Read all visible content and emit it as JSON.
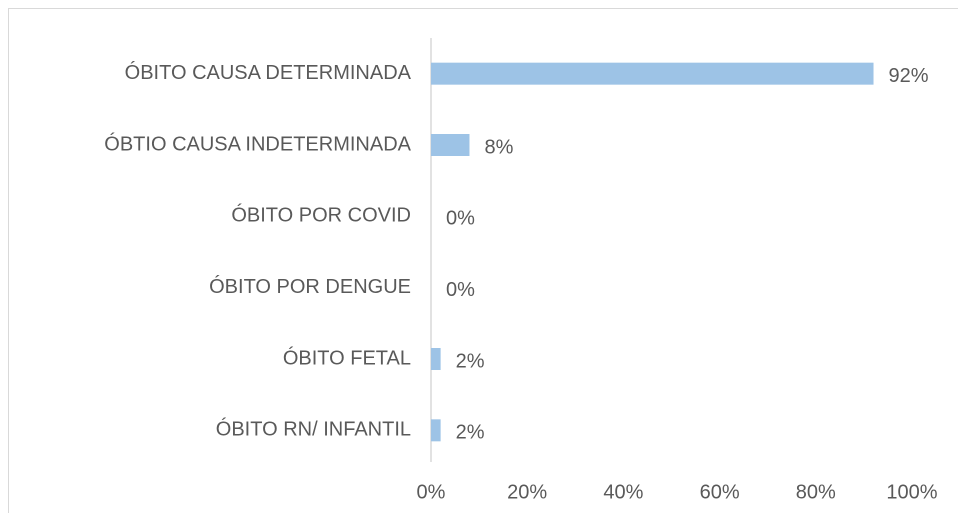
{
  "chart_data": {
    "type": "bar",
    "orientation": "horizontal",
    "categories": [
      "ÓBITO CAUSA DETERMINADA",
      "ÓBTIO CAUSA INDETERMINADA",
      "ÓBITO POR COVID",
      "ÓBITO POR DENGUE",
      "ÓBITO FETAL",
      "ÓBITO RN/ INFANTIL"
    ],
    "values": [
      92,
      8,
      0,
      0,
      2,
      2
    ],
    "value_labels": [
      "92%",
      "8%",
      "0%",
      "0%",
      "2%",
      "2%"
    ],
    "color": "#9dc3e6",
    "xlim": [
      0,
      100
    ],
    "xticks": [
      {
        "value": 0,
        "label": "0%"
      },
      {
        "value": 20,
        "label": "20%"
      },
      {
        "value": 40,
        "label": "40%"
      },
      {
        "value": 60,
        "label": "60%"
      },
      {
        "value": 80,
        "label": "80%"
      },
      {
        "value": 100,
        "label": "100%"
      }
    ],
    "grid": false
  }
}
